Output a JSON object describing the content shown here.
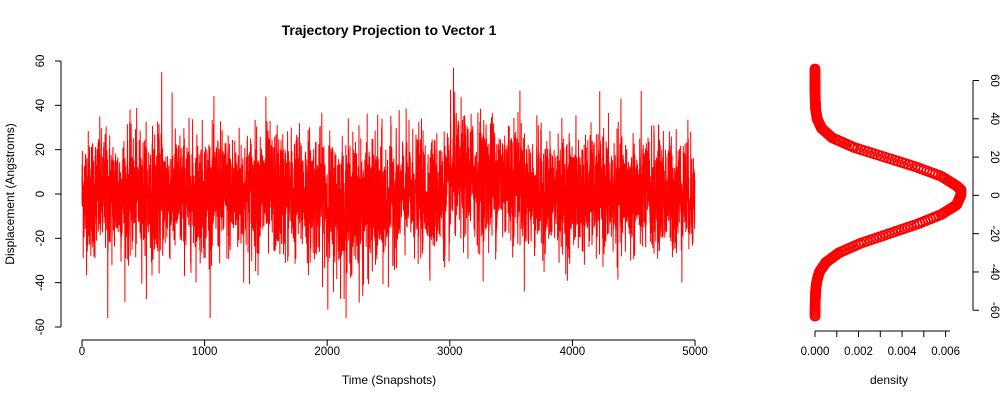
{
  "chart_data": [
    {
      "type": "line",
      "title": "Trajectory Projection to Vector 1",
      "xlabel": "Time (Snapshots)",
      "ylabel": "Displacement (Angstroms)",
      "xlim": [
        0,
        5000
      ],
      "ylim": [
        -60,
        60
      ],
      "x_ticks": [
        "0",
        "1000",
        "2000",
        "3000",
        "4000",
        "5000"
      ],
      "y_ticks": [
        "-60",
        "-40",
        "-20",
        "0",
        "20",
        "40",
        "60"
      ],
      "series": [
        {
          "color": "#ff0000",
          "n_points": 5000,
          "observed_min": -56,
          "observed_max": 57,
          "segments": [
            {
              "x_start": 0,
              "x_end": 2000,
              "mean": 0,
              "sd": 14
            },
            {
              "x_start": 2000,
              "x_end": 2500,
              "mean": -5,
              "sd": 15
            },
            {
              "x_start": 2500,
              "x_end": 3000,
              "mean": 0,
              "sd": 13
            },
            {
              "x_start": 3000,
              "x_end": 3600,
              "mean": 7,
              "sd": 14
            },
            {
              "x_start": 3600,
              "x_end": 5000,
              "mean": 0,
              "sd": 13
            }
          ],
          "extremes": [
            {
              "x": 210,
              "y": -56
            },
            {
              "x": 650,
              "y": 55
            },
            {
              "x": 3030,
              "y": 57
            },
            {
              "x": 2290,
              "y": -46
            },
            {
              "x": 1500,
              "y": 44
            }
          ]
        }
      ]
    },
    {
      "type": "scatter",
      "xlabel": "density",
      "xlim": [
        0,
        0.0068
      ],
      "ylim": [
        -63,
        66
      ],
      "x_ticks": [
        "0.000",
        "0.002",
        "0.004",
        "0.006"
      ],
      "y_ticks": [
        "-60",
        "-40",
        "-20",
        "0",
        "20",
        "40",
        "60"
      ],
      "series": [
        {
          "color": "#ff0000",
          "points": [
            {
              "y": -63,
              "density": 0.0
            },
            {
              "y": -55,
              "density": 1e-05
            },
            {
              "y": -50,
              "density": 3e-05
            },
            {
              "y": -45,
              "density": 8e-05
            },
            {
              "y": -40,
              "density": 0.0002
            },
            {
              "y": -35,
              "density": 0.0005
            },
            {
              "y": -30,
              "density": 0.0011
            },
            {
              "y": -25,
              "density": 0.0021
            },
            {
              "y": -20,
              "density": 0.0034
            },
            {
              "y": -15,
              "density": 0.0047
            },
            {
              "y": -10,
              "density": 0.0058
            },
            {
              "y": -5,
              "density": 0.0065
            },
            {
              "y": 0,
              "density": 0.0067
            },
            {
              "y": 3,
              "density": 0.0067
            },
            {
              "y": 5,
              "density": 0.0065
            },
            {
              "y": 10,
              "density": 0.0058
            },
            {
              "y": 15,
              "density": 0.0046
            },
            {
              "y": 20,
              "density": 0.0032
            },
            {
              "y": 25,
              "density": 0.0018
            },
            {
              "y": 30,
              "density": 0.0008
            },
            {
              "y": 35,
              "density": 0.0003
            },
            {
              "y": 40,
              "density": 0.0001
            },
            {
              "y": 45,
              "density": 3e-05
            },
            {
              "y": 50,
              "density": 1e-05
            },
            {
              "y": 55,
              "density": 0.0
            },
            {
              "y": 60,
              "density": 0.0
            },
            {
              "y": 66,
              "density": 0.0
            }
          ]
        }
      ]
    }
  ]
}
